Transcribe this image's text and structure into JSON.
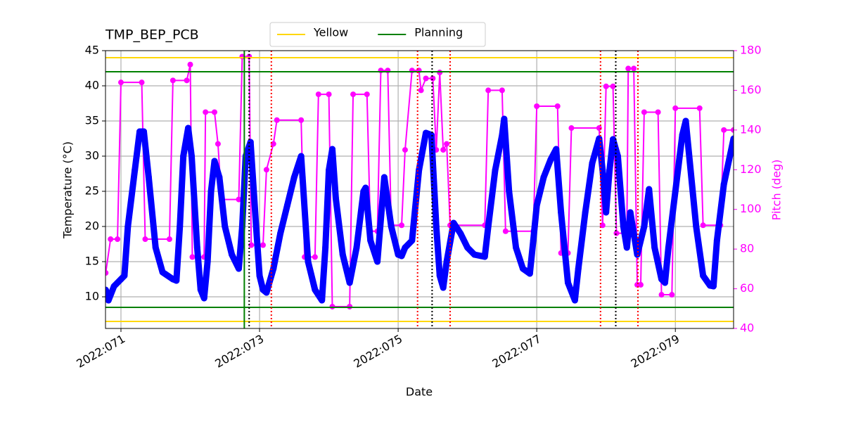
{
  "chart_data": {
    "type": "line",
    "title": "TMP_BEP_PCB",
    "xlabel": "Date",
    "ylabel": "Temperature (°C)",
    "y2label": "Pitch (deg)",
    "xlim": [
      70.777,
      79.84
    ],
    "xticks": [
      {
        "value": 71,
        "label": "2022:071"
      },
      {
        "value": 73,
        "label": "2022:073"
      },
      {
        "value": 75,
        "label": "2022:075"
      },
      {
        "value": 77,
        "label": "2022:077"
      },
      {
        "value": 79,
        "label": "2022:079"
      }
    ],
    "ylim": [
      5.5,
      45
    ],
    "yticks": [
      10,
      15,
      20,
      25,
      30,
      35,
      40,
      45
    ],
    "y2lim": [
      40,
      180
    ],
    "y2ticks": [
      40,
      60,
      80,
      100,
      120,
      140,
      160,
      180
    ],
    "y2color": "#ff00ff",
    "grid": true,
    "legend": "upper center",
    "series": [
      {
        "color": "#0000ff",
        "x": [
          70.78,
          70.82,
          70.9,
          71.0,
          71.05,
          71.1,
          71.2,
          71.27,
          71.33,
          71.4,
          71.5,
          71.6,
          71.75,
          71.8,
          71.85,
          71.9,
          71.97,
          72.02,
          72.1,
          72.15,
          72.2,
          72.25,
          72.3,
          72.35,
          72.42,
          72.5,
          72.6,
          72.7,
          72.75,
          72.8,
          72.87,
          72.95,
          73.0,
          73.05,
          73.1,
          73.2,
          73.3,
          73.4,
          73.5,
          73.6,
          73.62,
          73.7,
          73.8,
          73.9,
          73.95,
          74.0,
          74.05,
          74.1,
          74.2,
          74.3,
          74.4,
          74.5,
          74.53,
          74.6,
          74.7,
          74.8,
          74.9,
          75.0,
          75.05,
          75.1,
          75.2,
          75.3,
          75.4,
          75.48,
          75.55,
          75.6,
          75.65,
          75.7,
          75.8,
          75.9,
          76.0,
          76.1,
          76.2,
          76.25,
          76.3,
          76.4,
          76.5,
          76.53,
          76.6,
          76.7,
          76.8,
          76.9,
          76.95,
          77.0,
          77.1,
          77.2,
          77.28,
          77.35,
          77.45,
          77.55,
          77.6,
          77.7,
          77.8,
          77.9,
          77.95,
          78.0,
          78.05,
          78.1,
          78.17,
          78.25,
          78.3,
          78.35,
          78.4,
          78.45,
          78.55,
          78.62,
          78.7,
          78.8,
          78.85,
          78.9,
          79.0,
          79.1,
          79.15,
          79.3,
          79.4,
          79.5,
          79.55,
          79.6,
          79.7,
          79.84
        ],
        "values": [
          11,
          9.5,
          11.5,
          12.5,
          13,
          20,
          28,
          33.5,
          33.5,
          27,
          17,
          13.5,
          12.5,
          12.3,
          20,
          30,
          34,
          30,
          17,
          11,
          9.8,
          15,
          25,
          29.3,
          27,
          20,
          16,
          14,
          20,
          30,
          32,
          20,
          13,
          11,
          10.6,
          14,
          19,
          23,
          27,
          30,
          27,
          15,
          11,
          9.5,
          17,
          28,
          31,
          24,
          16,
          12,
          17,
          25,
          25.5,
          18,
          15,
          27,
          20,
          16,
          15.8,
          17,
          18,
          28,
          33.3,
          33,
          20,
          13,
          11.3,
          15,
          20.5,
          19,
          17,
          16,
          15.8,
          15.7,
          20,
          28,
          33,
          35.3,
          25,
          17,
          14,
          13.3,
          18,
          23,
          27,
          29.5,
          31,
          22,
          12,
          9.5,
          14,
          22,
          29,
          32.5,
          28,
          22,
          28,
          32.4,
          30,
          20,
          17,
          22,
          19,
          16,
          20,
          25.3,
          17,
          12.5,
          12,
          17,
          25,
          33,
          35,
          20,
          13,
          11.6,
          11.5,
          18,
          26,
          32.5
        ]
      },
      {
        "color": "#ff00ff",
        "axis": "y2",
        "x": [
          70.78,
          70.85,
          70.95,
          71.0,
          71.3,
          71.35,
          71.7,
          71.75,
          71.95,
          72.0,
          72.03,
          72.2,
          72.22,
          72.35,
          72.4,
          72.45,
          72.7,
          72.75,
          72.85,
          72.88,
          73.05,
          73.1,
          73.2,
          73.25,
          73.6,
          73.65,
          73.8,
          73.85,
          74.0,
          74.05,
          74.3,
          74.35,
          74.55,
          74.6,
          74.7,
          74.75,
          74.85,
          74.9,
          75.05,
          75.1,
          75.2,
          75.3,
          75.33,
          75.4,
          75.5,
          75.55,
          75.6,
          75.65,
          75.7,
          75.75,
          76.25,
          76.3,
          76.5,
          76.55,
          76.95,
          77.0,
          77.3,
          77.35,
          77.45,
          77.5,
          77.9,
          77.95,
          78.0,
          78.1,
          78.15,
          78.3,
          78.32,
          78.4,
          78.45,
          78.5,
          78.55,
          78.75,
          78.8,
          78.95,
          79.0,
          79.35,
          79.4,
          79.65,
          79.7,
          79.84
        ],
        "values": [
          68,
          85,
          85,
          164,
          164,
          85,
          85,
          165,
          165,
          173,
          76,
          76,
          149,
          149,
          133,
          105,
          105,
          177,
          177,
          82,
          82,
          120,
          133,
          145,
          145,
          76,
          76,
          158,
          158,
          51,
          51,
          158,
          158,
          89,
          89,
          170,
          170,
          92,
          92,
          130,
          170,
          170,
          160,
          166,
          166,
          130,
          169,
          130,
          133,
          92,
          92,
          160,
          160,
          89,
          89,
          152,
          152,
          78,
          78,
          141,
          141,
          92,
          162,
          162,
          88,
          88,
          171,
          171,
          62,
          62,
          149,
          149,
          57,
          57,
          151,
          151,
          92,
          92,
          140,
          140
        ]
      }
    ],
    "hlines": [
      {
        "name": "Yellow",
        "color": "#ffd700",
        "values": [
          44,
          6.5
        ]
      },
      {
        "name": "Planning",
        "color": "#008000",
        "values": [
          42,
          8.5
        ]
      }
    ],
    "vlines": [
      {
        "color": "#008000",
        "style": "solid",
        "values": [
          72.78
        ]
      },
      {
        "color": "#000000",
        "style": "dotted",
        "values": [
          72.85,
          75.49,
          78.14
        ]
      },
      {
        "color": "#ff0000",
        "style": "dotted",
        "values": [
          73.17,
          75.28,
          75.75,
          77.92,
          78.46
        ]
      }
    ]
  }
}
